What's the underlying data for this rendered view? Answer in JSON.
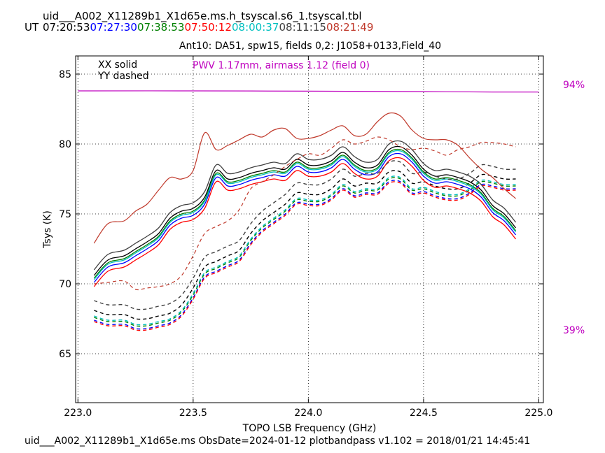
{
  "header": {
    "filename": "uid___A002_X11289b1_X1d65e.ms.h_tsyscal.s6_1.tsyscal.tbl",
    "ut_label": "UT",
    "ut_times": [
      {
        "text": "07:20:53",
        "color": "#000000"
      },
      {
        "text": "07:27:30",
        "color": "#0000ff"
      },
      {
        "text": "07:38:53",
        "color": "#008000"
      },
      {
        "text": "07:50:12",
        "color": "#ff0000"
      },
      {
        "text": "08:00:37",
        "color": "#00bfbf"
      },
      {
        "text": "08:11:15",
        "color": "#404040"
      },
      {
        "text": "08:21:49",
        "color": "#c0392b"
      }
    ]
  },
  "footer": {
    "text": "uid___A002_X11289b1_X1d65e.ms  ObsDate=2024-01-12   plotbandpass v1.102 = 2018/01/21 14:45:41"
  },
  "chart_data": {
    "type": "line",
    "title": "Ant10: DA51,  spw15,  fields 0,2: J1058+0133,Field_40",
    "xlabel": "TOPO LSB Frequency (GHz)",
    "ylabel": "Tsys (K)",
    "xlim": [
      222.99,
      225.02
    ],
    "ylim": [
      61.5,
      86.3
    ],
    "x_ticks": [
      "223.0",
      "223.5",
      "224.0",
      "224.5",
      "225.0"
    ],
    "x_tick_values": [
      223.0,
      223.5,
      224.0,
      224.5,
      225.0
    ],
    "y_ticks": [
      "65",
      "70",
      "75",
      "80",
      "85"
    ],
    "y_tick_values": [
      65,
      70,
      75,
      80,
      85
    ],
    "grid": true,
    "legend": {
      "lines": [
        "XX solid",
        "YY dashed"
      ],
      "placement": "top-left"
    },
    "annotation": {
      "text": "PWV 1.17mm, airmass 1.12 (field 0)",
      "color": "#bf00bf"
    },
    "right_labels": [
      {
        "text": "94%",
        "value": 94,
        "color": "#bf00bf"
      },
      {
        "text": "39%",
        "value": 39,
        "color": "#bf00bf"
      }
    ],
    "transmission": {
      "color": "#bf00bf",
      "x": [
        223.0,
        223.5,
        224.0,
        224.5,
        224.8,
        225.0
      ],
      "y": [
        83.8,
        83.8,
        83.78,
        83.75,
        83.72,
        83.72
      ]
    },
    "x": [
      223.07,
      223.13,
      223.2,
      223.25,
      223.3,
      223.35,
      223.4,
      223.45,
      223.5,
      223.55,
      223.6,
      223.65,
      223.7,
      223.75,
      223.8,
      223.85,
      223.9,
      223.95,
      224.0,
      224.05,
      224.1,
      224.15,
      224.2,
      224.25,
      224.3,
      224.35,
      224.4,
      224.45,
      224.5,
      224.55,
      224.6,
      224.65,
      224.7,
      224.75,
      224.8,
      224.85,
      224.9
    ],
    "xx_base": [
      70.4,
      71.5,
      71.8,
      72.3,
      72.8,
      73.4,
      74.5,
      75.0,
      75.2,
      76.0,
      77.9,
      77.3,
      77.4,
      77.7,
      77.9,
      78.1,
      78.0,
      78.7,
      78.3,
      78.3,
      78.6,
      79.2,
      78.5,
      78.1,
      78.3,
      79.4,
      79.6,
      79.0,
      78.0,
      77.5,
      77.6,
      77.4,
      77.1,
      76.5,
      75.4,
      74.8,
      73.8
    ],
    "yy_base": [
      67.9,
      67.6,
      67.6,
      67.3,
      67.3,
      67.5,
      67.7,
      68.3,
      69.5,
      71.0,
      71.4,
      71.8,
      72.2,
      73.4,
      74.3,
      74.9,
      75.5,
      76.3,
      76.2,
      76.2,
      76.6,
      77.3,
      76.8,
      77.0,
      77.0,
      77.8,
      77.8,
      77.0,
      77.1,
      76.8,
      76.6,
      76.6,
      77.0,
      77.6,
      77.5,
      77.3,
      77.3
    ],
    "series": [
      {
        "name": "07:20:53",
        "color": "#000000",
        "xx_offset": 0.2,
        "yy_offset": 0.2,
        "xx_x": [],
        "yy_x": []
      },
      {
        "name": "07:27:30",
        "color": "#0000ff",
        "xx_offset": -0.3,
        "yy_offset": -0.5
      },
      {
        "name": "07:38:53",
        "color": "#008000",
        "xx_offset": 0.0,
        "yy_offset": -0.3
      },
      {
        "name": "07:50:12",
        "color": "#ff0000",
        "xx_offset": -0.6,
        "yy_offset": -0.6
      },
      {
        "name": "08:00:37",
        "color": "#00bfbf",
        "xx_offset": -0.1,
        "yy_offset": -0.2
      },
      {
        "name": "08:11:15",
        "color": "#404040",
        "xx_offset": 0.6,
        "yy_offset": 0.9
      }
    ],
    "outlier_series": {
      "name": "08:21:49",
      "color": "#c0392b",
      "xx": [
        72.9,
        74.3,
        74.5,
        75.2,
        75.7,
        76.7,
        77.6,
        77.5,
        78.1,
        80.8,
        79.6,
        79.9,
        80.3,
        80.7,
        80.5,
        81.0,
        81.1,
        80.4,
        80.4,
        80.6,
        81.0,
        81.3,
        80.6,
        80.7,
        81.6,
        82.2,
        82.0,
        81.0,
        80.4,
        80.3,
        80.3,
        79.9,
        79.0,
        78.2,
        77.6,
        76.8,
        76.1
      ],
      "yy": [
        70.0,
        70.1,
        70.2,
        69.6,
        69.7,
        69.8,
        70.0,
        70.6,
        72.0,
        73.6,
        74.1,
        74.5,
        75.3,
        76.8,
        77.3,
        77.8,
        78.4,
        78.9,
        79.3,
        79.2,
        79.7,
        80.3,
        80.0,
        80.2,
        80.5,
        80.3,
        79.8,
        79.6,
        79.7,
        79.5,
        79.2,
        79.6,
        79.8,
        80.1,
        80.1,
        80.0,
        79.8
      ]
    }
  }
}
